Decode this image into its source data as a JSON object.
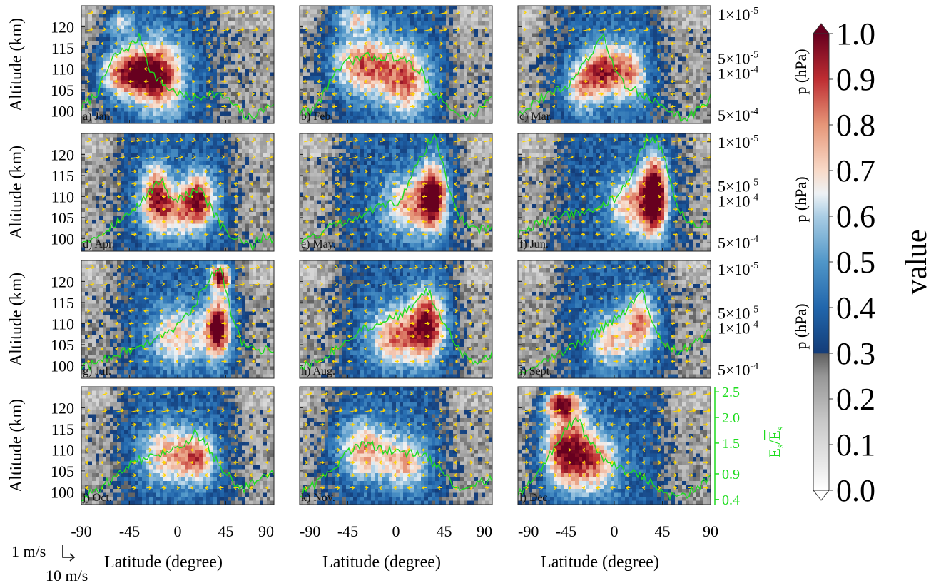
{
  "chart_data": {
    "type": "heatmap",
    "colormap": "RdBu_r with gray below 0.3",
    "x_axis": {
      "label": "Latitude (degree)",
      "range": [
        -90,
        90
      ],
      "ticks": [
        -90,
        -45,
        0,
        45,
        90
      ],
      "tick_labels": [
        "-90",
        "-45",
        "0",
        "45",
        "90"
      ]
    },
    "y_axis": {
      "label": "Altitude (km)",
      "range": [
        97,
        125
      ],
      "ticks": [
        100,
        105,
        110,
        115,
        120
      ],
      "tick_labels": [
        "100",
        "105",
        "110",
        "115",
        "120"
      ]
    },
    "right_axis": {
      "label": "p (hPa)",
      "ticks": [
        {
          "base": "1×10",
          "exp": "-5",
          "alt": 123
        },
        {
          "base": "5×10",
          "exp": "-5",
          "alt": 112.5
        },
        {
          "base": "1×10",
          "exp": "-4",
          "alt": 109
        },
        {
          "base": "5×10",
          "exp": "-4",
          "alt": 99
        }
      ]
    },
    "ratio_axis": {
      "label_parts": [
        "E",
        "s",
        "/",
        "E",
        "s"
      ],
      "color": "#1edc1e",
      "range": [
        0.3,
        2.6
      ],
      "ticks": [
        2.5,
        2.0,
        1.5,
        0.9,
        0.4
      ],
      "tick_labels": [
        "2.5",
        "2.0",
        "1.5",
        "0.9",
        "0.4"
      ]
    },
    "colorbar": {
      "label": "value",
      "range": [
        0.0,
        1.0
      ],
      "ticks": [
        1.0,
        0.9,
        0.8,
        0.7,
        0.6,
        0.5,
        0.4,
        0.3,
        0.2,
        0.1,
        0.0
      ],
      "tick_labels": [
        "1.0",
        "0.9",
        "0.8",
        "0.7",
        "0.6",
        "0.5",
        "0.4",
        "0.3",
        "0.2",
        "0.1",
        "0.0"
      ],
      "gray_threshold": 0.3
    },
    "wind_reference": {
      "label_1": "1 m/s",
      "label_2": "10 m/s"
    },
    "colors": {
      "ratio_line": "#1edc1e",
      "wind_arrows": "#ffd700",
      "gray_region": "#9a9a9a"
    },
    "panels": [
      {
        "label": "a) Jan.",
        "month": "January",
        "blobs": [
          {
            "lat": -45,
            "alt": 109,
            "sx": 28,
            "sy": 6,
            "amp": 0.72
          },
          {
            "lat": -15,
            "alt": 108,
            "sx": 22,
            "sy": 9,
            "amp": 0.52
          },
          {
            "lat": -55,
            "alt": 121,
            "sx": 14,
            "sy": 3,
            "amp": 0.35
          }
        ],
        "bg_gray": [
          {
            "lat": 55,
            "sx": 25
          }
        ],
        "ratio_line": [
          [
            -90,
            0.6
          ],
          [
            -75,
            0.9
          ],
          [
            -60,
            1.6
          ],
          [
            -45,
            1.8
          ],
          [
            -35,
            2.0
          ],
          [
            -25,
            1.3
          ],
          [
            -10,
            1.0
          ],
          [
            0,
            0.9
          ],
          [
            10,
            0.8
          ],
          [
            20,
            0.8
          ],
          [
            30,
            0.9
          ],
          [
            45,
            0.8
          ],
          [
            55,
            0.6
          ],
          [
            65,
            0.4
          ],
          [
            75,
            0.5
          ],
          [
            90,
            0.7
          ]
        ]
      },
      {
        "label": "b) Feb.",
        "month": "February",
        "blobs": [
          {
            "lat": -30,
            "alt": 111,
            "sx": 30,
            "sy": 7,
            "amp": 0.56
          },
          {
            "lat": 10,
            "alt": 107,
            "sx": 22,
            "sy": 8,
            "amp": 0.5
          },
          {
            "lat": -40,
            "alt": 122,
            "sx": 20,
            "sy": 3,
            "amp": 0.35
          }
        ],
        "bg_gray": [
          {
            "lat": 65,
            "sx": 16
          }
        ],
        "ratio_line": [
          [
            -90,
            0.5
          ],
          [
            -75,
            0.6
          ],
          [
            -60,
            1.2
          ],
          [
            -45,
            1.5
          ],
          [
            -30,
            1.6
          ],
          [
            -15,
            1.6
          ],
          [
            0,
            1.6
          ],
          [
            10,
            1.5
          ],
          [
            25,
            1.3
          ],
          [
            35,
            0.9
          ],
          [
            45,
            0.7
          ],
          [
            55,
            0.5
          ],
          [
            65,
            0.4
          ],
          [
            75,
            0.5
          ],
          [
            90,
            0.9
          ]
        ]
      },
      {
        "label": "c) Mar.",
        "month": "March",
        "blobs": [
          {
            "lat": -10,
            "alt": 110,
            "sx": 16,
            "sy": 6,
            "amp": 0.6
          },
          {
            "lat": -30,
            "alt": 106,
            "sx": 16,
            "sy": 6,
            "amp": 0.47
          },
          {
            "lat": 15,
            "alt": 109,
            "sx": 16,
            "sy": 7,
            "amp": 0.48
          }
        ],
        "bg_gray": [
          {
            "lat": -80,
            "sx": 12
          },
          {
            "lat": 65,
            "sx": 22
          }
        ],
        "ratio_line": [
          [
            -90,
            0.5
          ],
          [
            -75,
            0.7
          ],
          [
            -60,
            0.9
          ],
          [
            -45,
            1.0
          ],
          [
            -30,
            1.4
          ],
          [
            -20,
            1.7
          ],
          [
            -10,
            2.0
          ],
          [
            0,
            1.4
          ],
          [
            10,
            1.0
          ],
          [
            25,
            0.9
          ],
          [
            40,
            0.7
          ],
          [
            55,
            0.5
          ],
          [
            65,
            0.4
          ],
          [
            75,
            0.5
          ],
          [
            90,
            0.8
          ]
        ]
      },
      {
        "label": "d) Apr.",
        "month": "April",
        "blobs": [
          {
            "lat": -20,
            "alt": 111,
            "sx": 14,
            "sy": 7,
            "amp": 0.56
          },
          {
            "lat": 20,
            "alt": 110,
            "sx": 15,
            "sy": 6,
            "amp": 0.54
          },
          {
            "lat": 0,
            "alt": 106,
            "sx": 30,
            "sy": 6,
            "amp": 0.4
          }
        ],
        "bg_gray": [
          {
            "lat": -75,
            "sx": 18
          },
          {
            "lat": 70,
            "sx": 18
          }
        ],
        "ratio_line": [
          [
            -90,
            0.5
          ],
          [
            -75,
            0.6
          ],
          [
            -55,
            0.9
          ],
          [
            -40,
            1.1
          ],
          [
            -25,
            1.5
          ],
          [
            -15,
            1.7
          ],
          [
            -5,
            1.3
          ],
          [
            10,
            1.4
          ],
          [
            20,
            1.5
          ],
          [
            30,
            1.2
          ],
          [
            40,
            0.8
          ],
          [
            55,
            0.5
          ],
          [
            70,
            0.4
          ],
          [
            80,
            0.6
          ],
          [
            90,
            0.5
          ]
        ]
      },
      {
        "label": "e) May.",
        "month": "May",
        "blobs": [
          {
            "lat": 35,
            "alt": 110,
            "sx": 13,
            "sy": 8,
            "amp": 0.82
          },
          {
            "lat": 10,
            "alt": 108,
            "sx": 22,
            "sy": 7,
            "amp": 0.45
          }
        ],
        "bg_gray": [
          {
            "lat": -75,
            "sx": 20
          },
          {
            "lat": 75,
            "sx": 12
          }
        ],
        "ratio_line": [
          [
            -90,
            0.5
          ],
          [
            -75,
            0.6
          ],
          [
            -60,
            0.8
          ],
          [
            -45,
            0.9
          ],
          [
            -25,
            1.1
          ],
          [
            -10,
            1.2
          ],
          [
            5,
            1.3
          ],
          [
            20,
            2.0
          ],
          [
            35,
            2.6
          ],
          [
            45,
            1.9
          ],
          [
            55,
            1.2
          ],
          [
            65,
            0.8
          ],
          [
            75,
            0.7
          ],
          [
            90,
            0.8
          ]
        ]
      },
      {
        "label": "f) Jun.",
        "month": "June",
        "blobs": [
          {
            "lat": 38,
            "alt": 110,
            "sx": 12,
            "sy": 9,
            "amp": 0.98
          },
          {
            "lat": 15,
            "alt": 108,
            "sx": 20,
            "sy": 7,
            "amp": 0.45
          }
        ],
        "bg_gray": [
          {
            "lat": -75,
            "sx": 22
          }
        ],
        "ratio_line": [
          [
            -90,
            0.6
          ],
          [
            -75,
            0.8
          ],
          [
            -60,
            0.9
          ],
          [
            -45,
            1.0
          ],
          [
            -25,
            1.1
          ],
          [
            -10,
            1.2
          ],
          [
            5,
            1.4
          ],
          [
            20,
            2.0
          ],
          [
            30,
            2.5
          ],
          [
            40,
            2.5
          ],
          [
            50,
            1.9
          ],
          [
            60,
            1.1
          ],
          [
            75,
            0.8
          ],
          [
            90,
            0.9
          ]
        ]
      },
      {
        "label": "g) Jul.",
        "month": "July",
        "blobs": [
          {
            "lat": 38,
            "alt": 109,
            "sx": 12,
            "sy": 7,
            "amp": 0.82
          },
          {
            "lat": 40,
            "alt": 121,
            "sx": 9,
            "sy": 3,
            "amp": 0.78
          },
          {
            "lat": 0,
            "alt": 107,
            "sx": 26,
            "sy": 7,
            "amp": 0.42
          }
        ],
        "bg_gray": [
          {
            "lat": -78,
            "sx": 18
          },
          {
            "lat": 75,
            "sx": 14
          }
        ],
        "ratio_line": [
          [
            -90,
            0.5
          ],
          [
            -75,
            0.6
          ],
          [
            -55,
            0.8
          ],
          [
            -35,
            0.9
          ],
          [
            -15,
            1.1
          ],
          [
            0,
            1.3
          ],
          [
            15,
            1.7
          ],
          [
            30,
            2.3
          ],
          [
            40,
            2.5
          ],
          [
            50,
            1.6
          ],
          [
            60,
            1.0
          ],
          [
            75,
            0.8
          ],
          [
            90,
            0.9
          ]
        ]
      },
      {
        "label": "h) Aug.",
        "month": "August",
        "blobs": [
          {
            "lat": 30,
            "alt": 110,
            "sx": 16,
            "sy": 8,
            "amp": 0.68
          },
          {
            "lat": 0,
            "alt": 107,
            "sx": 25,
            "sy": 7,
            "amp": 0.52
          }
        ],
        "bg_gray": [
          {
            "lat": -75,
            "sx": 18
          },
          {
            "lat": 75,
            "sx": 14
          }
        ],
        "ratio_line": [
          [
            -90,
            0.5
          ],
          [
            -75,
            0.6
          ],
          [
            -55,
            0.9
          ],
          [
            -35,
            1.2
          ],
          [
            -15,
            1.4
          ],
          [
            0,
            1.5
          ],
          [
            15,
            1.7
          ],
          [
            30,
            2.0
          ],
          [
            40,
            1.6
          ],
          [
            50,
            1.2
          ],
          [
            60,
            0.8
          ],
          [
            75,
            0.6
          ],
          [
            90,
            0.8
          ]
        ]
      },
      {
        "label": "i) Sept.",
        "month": "September",
        "blobs": [
          {
            "lat": 25,
            "alt": 110,
            "sx": 15,
            "sy": 7,
            "amp": 0.55
          },
          {
            "lat": -5,
            "alt": 106,
            "sx": 18,
            "sy": 6,
            "amp": 0.42
          }
        ],
        "bg_gray": [
          {
            "lat": -70,
            "sx": 20
          },
          {
            "lat": 70,
            "sx": 18
          }
        ],
        "ratio_line": [
          [
            -90,
            0.4
          ],
          [
            -70,
            0.6
          ],
          [
            -50,
            0.8
          ],
          [
            -30,
            1.0
          ],
          [
            -10,
            1.3
          ],
          [
            10,
            1.6
          ],
          [
            25,
            2.0
          ],
          [
            35,
            1.5
          ],
          [
            45,
            1.0
          ],
          [
            60,
            0.8
          ],
          [
            75,
            1.0
          ],
          [
            90,
            1.2
          ]
        ]
      },
      {
        "label": "j) Oct.",
        "month": "October",
        "blobs": [
          {
            "lat": -10,
            "alt": 109,
            "sx": 25,
            "sy": 7,
            "amp": 0.45
          },
          {
            "lat": 20,
            "alt": 108,
            "sx": 16,
            "sy": 6,
            "amp": 0.47
          }
        ],
        "bg_gray": [
          {
            "lat": -75,
            "sx": 18
          },
          {
            "lat": 72,
            "sx": 18
          }
        ],
        "ratio_line": [
          [
            -90,
            0.4
          ],
          [
            -75,
            0.6
          ],
          [
            -60,
            0.8
          ],
          [
            -45,
            1.1
          ],
          [
            -30,
            1.2
          ],
          [
            -10,
            1.3
          ],
          [
            5,
            1.4
          ],
          [
            15,
            1.7
          ],
          [
            25,
            1.5
          ],
          [
            35,
            1.2
          ],
          [
            45,
            0.9
          ],
          [
            60,
            0.6
          ],
          [
            75,
            0.8
          ],
          [
            90,
            0.9
          ]
        ]
      },
      {
        "label": "k) Nov.",
        "month": "November",
        "blobs": [
          {
            "lat": -30,
            "alt": 110,
            "sx": 25,
            "sy": 7,
            "amp": 0.48
          },
          {
            "lat": 10,
            "alt": 107,
            "sx": 20,
            "sy": 6,
            "amp": 0.45
          }
        ],
        "bg_gray": [
          {
            "lat": 65,
            "sx": 20
          }
        ],
        "ratio_line": [
          [
            -90,
            0.5
          ],
          [
            -75,
            0.7
          ],
          [
            -60,
            1.0
          ],
          [
            -45,
            1.3
          ],
          [
            -30,
            1.5
          ],
          [
            -15,
            1.4
          ],
          [
            0,
            1.3
          ],
          [
            15,
            1.3
          ],
          [
            30,
            1.2
          ],
          [
            45,
            0.9
          ],
          [
            60,
            0.6
          ],
          [
            75,
            0.7
          ],
          [
            90,
            0.8
          ]
        ]
      },
      {
        "label": "l) Dec.",
        "month": "December",
        "blobs": [
          {
            "lat": -45,
            "alt": 110,
            "sx": 22,
            "sy": 9,
            "amp": 0.76
          },
          {
            "lat": -50,
            "alt": 121,
            "sx": 16,
            "sy": 3,
            "amp": 0.7
          },
          {
            "lat": -15,
            "alt": 107,
            "sx": 20,
            "sy": 7,
            "amp": 0.45
          }
        ],
        "bg_gray": [
          {
            "lat": 65,
            "sx": 20
          }
        ],
        "ratio_line": [
          [
            -90,
            0.5
          ],
          [
            -75,
            0.8
          ],
          [
            -60,
            1.3
          ],
          [
            -45,
            1.8
          ],
          [
            -35,
            2.0
          ],
          [
            -25,
            1.6
          ],
          [
            -10,
            1.2
          ],
          [
            5,
            1.0
          ],
          [
            20,
            0.9
          ],
          [
            35,
            0.7
          ],
          [
            50,
            0.5
          ],
          [
            60,
            0.4
          ],
          [
            75,
            0.6
          ],
          [
            90,
            0.8
          ]
        ]
      }
    ]
  }
}
